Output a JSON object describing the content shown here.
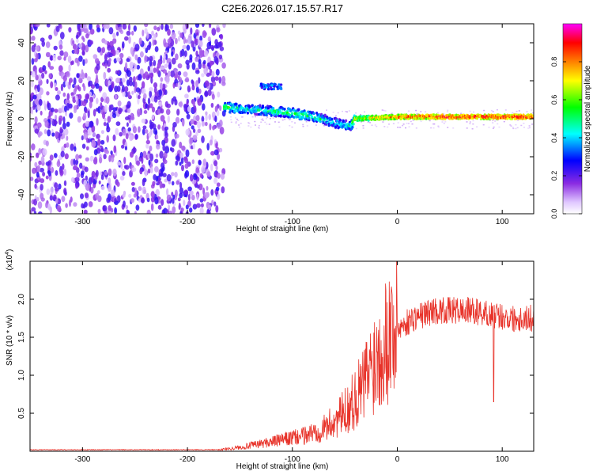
{
  "page_title": "C2E6.2026.017.15.57.R17",
  "chart_data": [
    {
      "type": "heatmap",
      "title": "C2E6.2026.017.15.57.R17",
      "xlabel": "Height of straight line (km)",
      "ylabel": "Frequency (Hz)",
      "xlim": [
        -350,
        130
      ],
      "ylim": [
        -50,
        50
      ],
      "x_ticks": [
        -300,
        -200,
        -100,
        0,
        100
      ],
      "x_tick_labels": [
        "-300",
        "-200",
        "-100",
        "0",
        "100"
      ],
      "y_ticks": [
        -40,
        -20,
        0,
        20,
        40
      ],
      "y_tick_labels": [
        "-40",
        "-20",
        "0",
        "20",
        "40"
      ],
      "colorbar": {
        "label": "Normalized spectral amplitude",
        "range": [
          0,
          1
        ],
        "ticks": [
          0.0,
          0.2,
          0.4,
          0.6,
          0.8
        ],
        "tick_labels": [
          "0.0",
          "0.2",
          "0.4",
          "0.6",
          "0.8"
        ],
        "colormap": [
          "#ffffff",
          "#e0c8ff",
          "#8a2be2",
          "#0000ff",
          "#00ffff",
          "#00ff00",
          "#ffff00",
          "#ff8000",
          "#ff0000",
          "#ff00ff"
        ]
      },
      "regions": {
        "noise_band": {
          "x_range": [
            -350,
            -165
          ],
          "freq_range": [
            -50,
            50
          ],
          "amplitude": [
            0.05,
            0.25
          ]
        },
        "signal_track": [
          {
            "x": -165,
            "freq": 6,
            "amplitude": 0.55
          },
          {
            "x": -140,
            "freq": 5,
            "amplitude": 0.45
          },
          {
            "x": -120,
            "freq": 4,
            "amplitude": 0.5
          },
          {
            "x": -100,
            "freq": 3,
            "amplitude": 0.55
          },
          {
            "x": -80,
            "freq": 1,
            "amplitude": 0.5
          },
          {
            "x": -60,
            "freq": -2,
            "amplitude": 0.45
          },
          {
            "x": -45,
            "freq": -4,
            "amplitude": 0.45
          },
          {
            "x": -40,
            "freq": 0,
            "amplitude": 0.7
          },
          {
            "x": 0,
            "freq": 1,
            "amplitude": 0.85
          },
          {
            "x": 50,
            "freq": 1,
            "amplitude": 0.9
          },
          {
            "x": 100,
            "freq": 1,
            "amplitude": 0.9
          },
          {
            "x": 130,
            "freq": 1,
            "amplitude": 0.9
          }
        ],
        "upper_feature": {
          "x_range": [
            -130,
            -110
          ],
          "freq": 17,
          "amplitude": 0.4
        }
      }
    },
    {
      "type": "line",
      "xlabel": "Height of straight line (km)",
      "ylabel": "SNR (10 * v/v)",
      "y_multiplier": "(x10",
      "y_multiplier_exp": "4",
      "xlim": [
        -350,
        130
      ],
      "ylim": [
        0,
        2.5
      ],
      "x_ticks": [
        -300,
        -200,
        -100,
        0,
        100
      ],
      "x_tick_labels": [
        "-300",
        "-200",
        "-100",
        "0",
        "100"
      ],
      "y_ticks": [
        0.5,
        1.0,
        1.5,
        2.0
      ],
      "y_tick_labels": [
        "0.5",
        "1.0",
        "1.5",
        "2.0"
      ],
      "line_color": "#e8332a",
      "series": [
        {
          "x": [
            -350,
            -250,
            -170,
            -150,
            -130,
            -110,
            -90,
            -70,
            -55,
            -45,
            -35,
            -25,
            -15,
            -5,
            5,
            15,
            25,
            35,
            50,
            70,
            90,
            110,
            130
          ],
          "values": [
            0.02,
            0.02,
            0.02,
            0.05,
            0.1,
            0.15,
            0.2,
            0.3,
            0.45,
            0.6,
            0.8,
            1.1,
            1.4,
            1.6,
            1.65,
            1.75,
            1.8,
            1.85,
            1.85,
            1.85,
            1.8,
            1.75,
            1.75
          ]
        }
      ]
    }
  ]
}
